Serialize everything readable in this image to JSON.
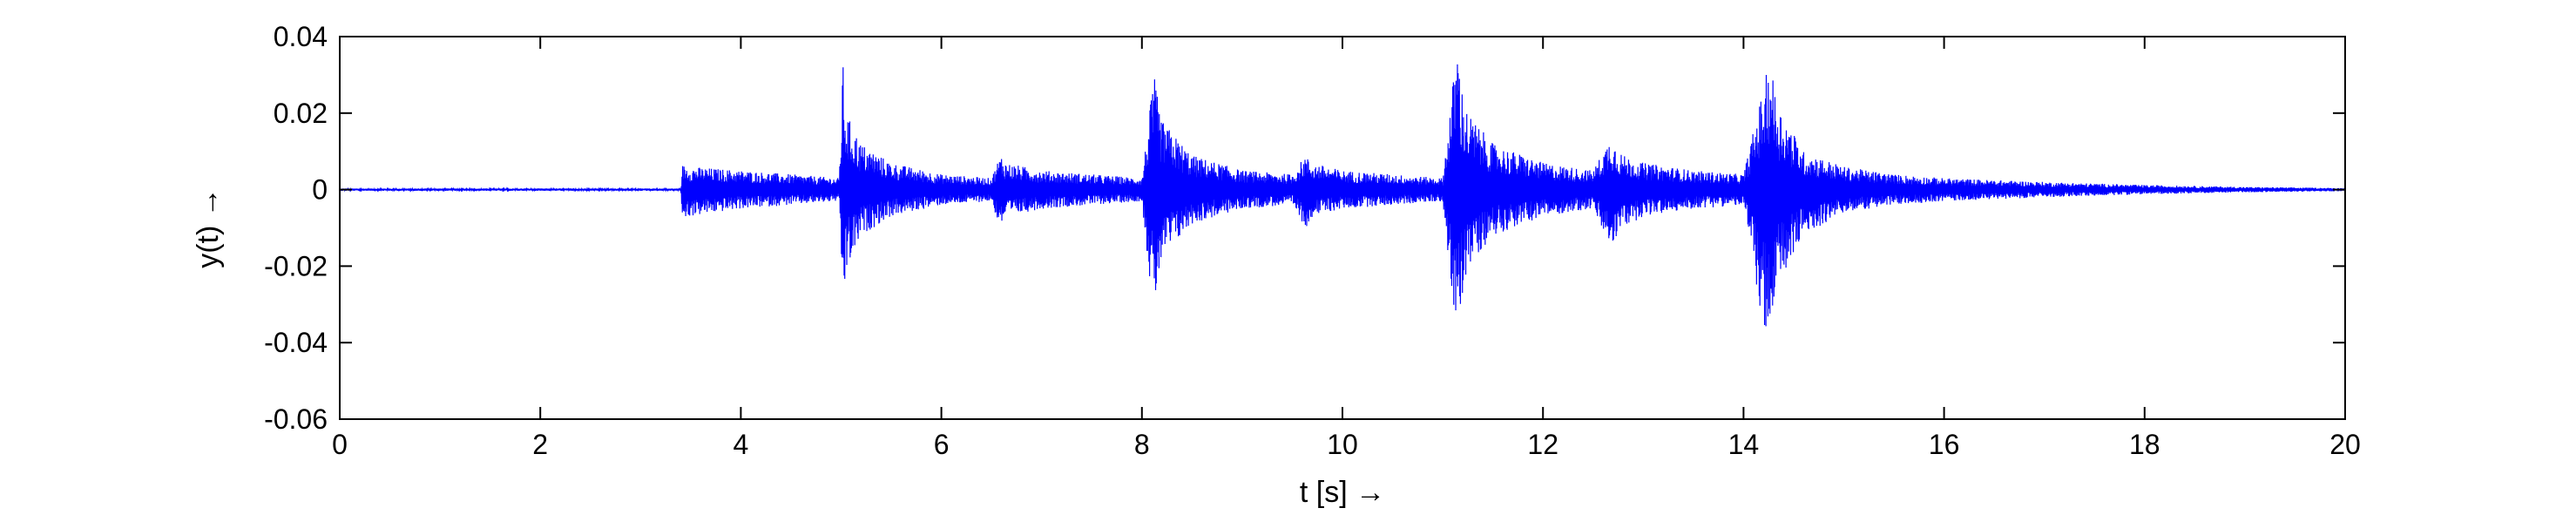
{
  "chart_data": {
    "type": "line",
    "title": "",
    "xlabel": "t [s] →",
    "ylabel": "y(t) →",
    "xlim": [
      0,
      20
    ],
    "ylim": [
      -0.06,
      0.04
    ],
    "x_ticks": [
      0,
      2,
      4,
      6,
      8,
      10,
      12,
      14,
      16,
      18,
      20
    ],
    "x_tick_labels": [
      "0",
      "2",
      "4",
      "6",
      "8",
      "10",
      "12",
      "14",
      "16",
      "18",
      "20"
    ],
    "y_ticks": [
      -0.06,
      -0.04,
      -0.02,
      0,
      0.02,
      0.04
    ],
    "y_tick_labels": [
      "-0.06",
      "-0.04",
      "-0.02",
      "0",
      "0.02",
      "0.04"
    ],
    "grid": false,
    "legend": "none",
    "series_color": "#0000ff",
    "series": [
      {
        "x": [
          0,
          3.4,
          3.42,
          3.5,
          4.0,
          4.5,
          4.98,
          5.02,
          5.05,
          5.2,
          5.5,
          6.0,
          6.5,
          6.57,
          6.6,
          6.65,
          7.0,
          7.5,
          8.0,
          8.12,
          8.15,
          8.2,
          8.5,
          9.0,
          9.5,
          9.63,
          9.66,
          9.7,
          10.0,
          10.5,
          11.0,
          11.15,
          11.18,
          11.25,
          11.5,
          12.0,
          12.5,
          12.68,
          12.72,
          12.8,
          13.0,
          13.5,
          14.0,
          14.27,
          14.3,
          14.35,
          14.6,
          15.0,
          15.5,
          16.0,
          17.0,
          18.0,
          19.0,
          20.0
        ],
        "upper": [
          0.0003,
          0.0003,
          0.0065,
          0.006,
          0.005,
          0.004,
          0.003,
          0.033,
          0.02,
          0.012,
          0.007,
          0.004,
          0.003,
          0.008,
          0.009,
          0.007,
          0.005,
          0.004,
          0.003,
          0.03,
          0.025,
          0.018,
          0.009,
          0.005,
          0.004,
          0.009,
          0.008,
          0.007,
          0.005,
          0.004,
          0.003,
          0.04,
          0.028,
          0.02,
          0.012,
          0.007,
          0.005,
          0.014,
          0.012,
          0.009,
          0.007,
          0.005,
          0.004,
          0.035,
          0.028,
          0.022,
          0.01,
          0.006,
          0.004,
          0.003,
          0.002,
          0.0012,
          0.0007,
          0.0004
        ],
        "lower": [
          -0.0003,
          -0.0003,
          -0.008,
          -0.007,
          -0.005,
          -0.004,
          -0.003,
          -0.032,
          -0.022,
          -0.012,
          -0.007,
          -0.004,
          -0.003,
          -0.009,
          -0.009,
          -0.007,
          -0.005,
          -0.004,
          -0.003,
          -0.035,
          -0.025,
          -0.018,
          -0.009,
          -0.005,
          -0.004,
          -0.01,
          -0.009,
          -0.007,
          -0.005,
          -0.004,
          -0.003,
          -0.044,
          -0.03,
          -0.02,
          -0.012,
          -0.007,
          -0.005,
          -0.016,
          -0.013,
          -0.01,
          -0.007,
          -0.005,
          -0.004,
          -0.048,
          -0.035,
          -0.025,
          -0.012,
          -0.006,
          -0.004,
          -0.003,
          -0.002,
          -0.0012,
          -0.0007,
          -0.0004
        ]
      }
    ]
  }
}
